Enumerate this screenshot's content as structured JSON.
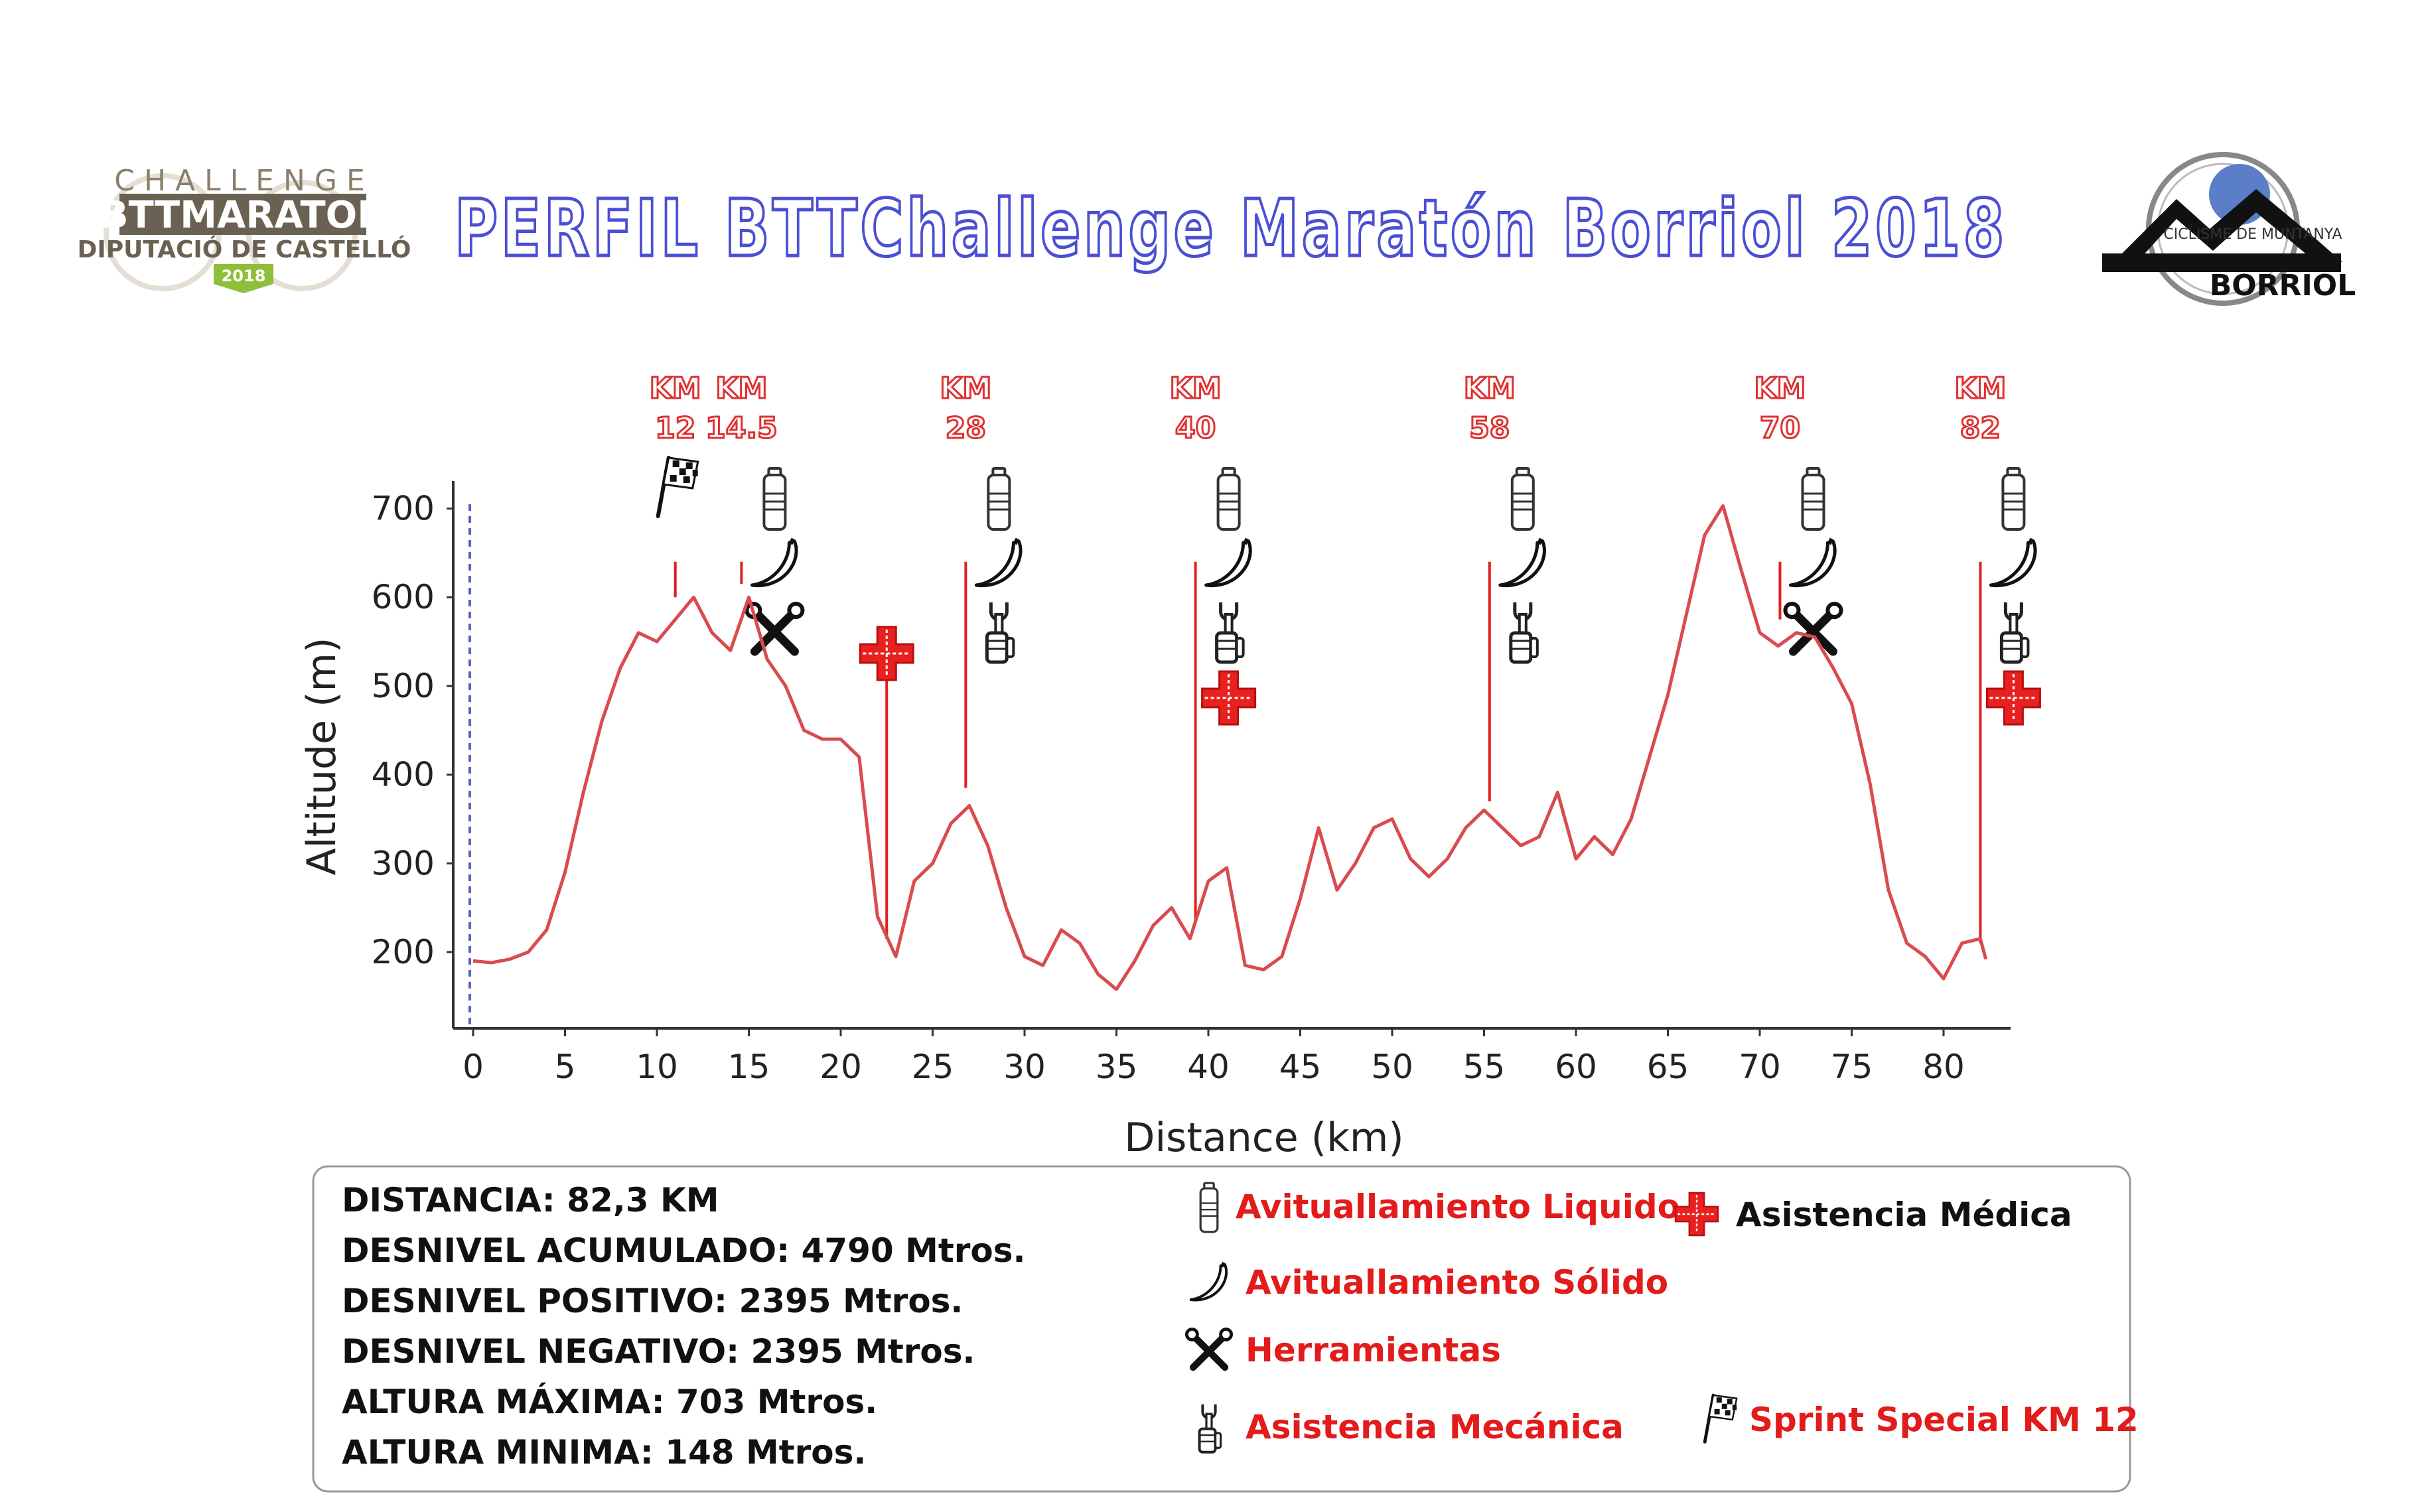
{
  "header": {
    "title": "PERFIL BTTChallenge Maratón Borriol 2018",
    "logo_left": {
      "line1": "CHALLENGE",
      "line2": "BTTMARATON",
      "line3": "DIPUTACIÓ DE CASTELLÓ",
      "badge": "2018"
    },
    "logo_right": {
      "ring_text": "CICLISME DE MUNTANYA",
      "name": "BORRIOL"
    }
  },
  "colors": {
    "profile_line": "#d94b4f",
    "marker_line": "#e02020",
    "title_stroke": "#4b4fd3",
    "cross": "#e82020"
  },
  "chart_data": {
    "type": "line",
    "xlabel": "Distance (km)",
    "ylabel": "Altitude (m)",
    "xlim": [
      0,
      84
    ],
    "ylim": [
      130,
      720
    ],
    "x_ticks": [
      0,
      5,
      10,
      15,
      20,
      25,
      30,
      35,
      40,
      45,
      50,
      55,
      60,
      65,
      70,
      75,
      80
    ],
    "y_ticks": [
      200,
      300,
      400,
      500,
      600,
      700
    ],
    "grid": false,
    "series": [
      {
        "x": [
          0,
          1,
          2,
          3,
          4,
          5,
          6,
          7,
          8,
          9,
          10,
          11,
          12,
          13,
          14,
          15,
          16,
          17,
          18,
          19,
          20,
          21,
          22,
          23,
          24,
          25,
          26,
          27,
          28,
          29,
          30,
          31,
          32,
          33,
          34,
          35,
          36,
          37,
          38,
          39,
          40,
          41,
          42,
          43,
          44,
          45,
          46,
          47,
          48,
          49,
          50,
          51,
          52,
          53,
          54,
          55,
          56,
          57,
          58,
          59,
          60,
          61,
          62,
          63,
          64,
          65,
          66,
          67,
          68,
          69,
          70,
          71,
          72,
          73,
          74,
          75,
          76,
          77,
          78,
          79,
          80,
          81,
          82,
          82.3
        ],
        "y": [
          190,
          188,
          192,
          200,
          225,
          290,
          380,
          460,
          520,
          560,
          550,
          575,
          600,
          560,
          540,
          600,
          530,
          500,
          450,
          440,
          440,
          420,
          240,
          195,
          280,
          300,
          345,
          365,
          320,
          250,
          195,
          185,
          225,
          210,
          175,
          158,
          190,
          230,
          250,
          215,
          280,
          295,
          185,
          180,
          195,
          260,
          340,
          270,
          300,
          340,
          350,
          305,
          285,
          305,
          340,
          360,
          340,
          320,
          330,
          380,
          305,
          330,
          310,
          350,
          420,
          490,
          580,
          670,
          703,
          630,
          560,
          545,
          560,
          555,
          520,
          480,
          390,
          270,
          210,
          195,
          170,
          210,
          215,
          192
        ]
      }
    ],
    "markers": [
      {
        "label": "KM\n12",
        "km": 11,
        "top": 600,
        "bottom": 640,
        "icons": [
          "flag-icon"
        ]
      },
      {
        "label": "KM\n14.5",
        "km": 14.6,
        "top": 615,
        "bottom": 640,
        "icons": [
          "bottle-icon",
          "banana-icon",
          "tools-icon"
        ]
      },
      {
        "label": "",
        "km": 22.5,
        "top": 215,
        "bottom": 530,
        "icons": [
          "cross-icon"
        ]
      },
      {
        "label": "KM\n28",
        "km": 26.8,
        "top": 385,
        "bottom": 640,
        "icons": [
          "bottle-icon",
          "banana-icon",
          "mechanic-icon"
        ]
      },
      {
        "label": "KM\n40",
        "km": 39.3,
        "top": 235,
        "bottom": 640,
        "icons": [
          "bottle-icon",
          "banana-icon",
          "mechanic-icon",
          "cross-icon"
        ]
      },
      {
        "label": "KM\n58",
        "km": 55.3,
        "top": 370,
        "bottom": 640,
        "icons": [
          "bottle-icon",
          "banana-icon",
          "mechanic-icon"
        ]
      },
      {
        "label": "KM\n70",
        "km": 71.1,
        "top": 575,
        "bottom": 640,
        "icons": [
          "bottle-icon",
          "banana-icon",
          "tools-icon"
        ]
      },
      {
        "label": "KM\n82",
        "km": 82.0,
        "top": 210,
        "bottom": 640,
        "icons": [
          "bottle-icon",
          "banana-icon",
          "mechanic-icon",
          "cross-icon"
        ]
      }
    ]
  },
  "stats": [
    "DISTANCIA: 82,3 KM",
    "DESNIVEL ACUMULADO: 4790 Mtros.",
    "DESNIVEL POSITIVO:  2395 Mtros.",
    "DESNIVEL NEGATIVO: 2395 Mtros.",
    "ALTURA MÁXIMA: 703 Mtros.",
    "ALTURA MINIMA:  148 Mtros."
  ],
  "legend": [
    {
      "icon": "bottle-icon",
      "label": "Avituallamiento Liquido",
      "color": "red"
    },
    {
      "icon": "cross-icon",
      "label": "Asistencia Médica",
      "color": "black"
    },
    {
      "icon": "banana-icon",
      "label": "Avituallamiento Sólido",
      "color": "red"
    },
    {
      "icon": "tools-icon",
      "label": "Herramientas",
      "color": "red"
    },
    {
      "icon": "mechanic-icon",
      "label": "Asistencia Mecánica",
      "color": "red"
    },
    {
      "icon": "flag-icon",
      "label": "Sprint Special KM 12",
      "color": "red"
    }
  ]
}
